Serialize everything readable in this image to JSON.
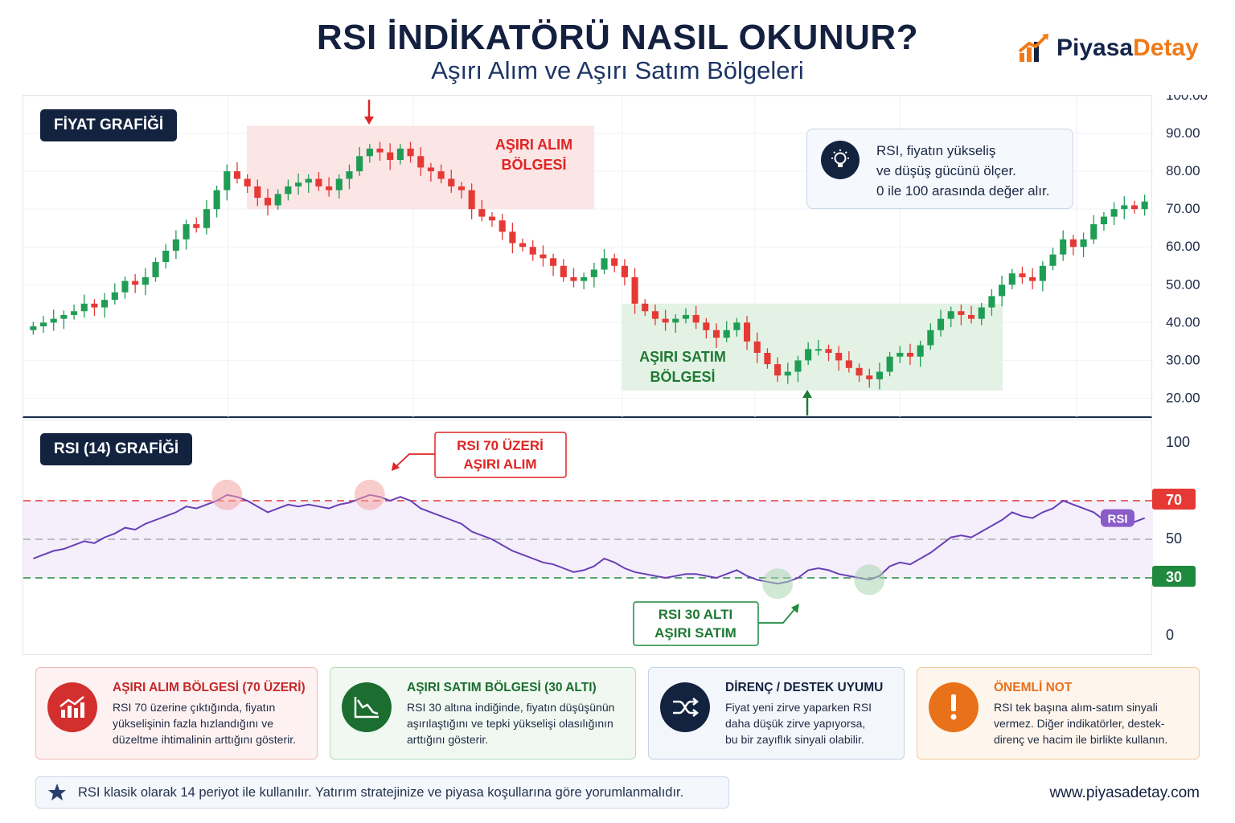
{
  "header": {
    "title": "RSI İNDİKATÖRÜ NASIL OKUNUR?",
    "subtitle": "Aşırı Alım ve Aşırı Satım Bölgeleri",
    "logo_part1": "Piyasa",
    "logo_part2": "Detay"
  },
  "price_panel": {
    "tag": "FİYAT GRAFİĞİ",
    "overbought_zone_label": [
      "AŞIRI ALIM",
      "BÖLGESİ"
    ],
    "oversold_zone_label": [
      "AŞIRI SATIM",
      "BÖLGESİ"
    ],
    "info_lines": [
      "RSI, fiyatın yükseliş",
      "ve düşüş gücünü ölçer.",
      "0 ile 100 arasında değer alır."
    ]
  },
  "rsi_panel": {
    "tag": "RSI (14) GRAFİĞİ",
    "overbought_callout": [
      "RSI 70 ÜZERİ",
      "AŞIRI ALIM"
    ],
    "oversold_callout": [
      "RSI 30 ALTI",
      "AŞIRI SATIM"
    ],
    "line_label": "RSI",
    "badge_70": "70",
    "badge_30": "30"
  },
  "chart_data": [
    {
      "type": "candlestick",
      "title": "FİYAT GRAFİĞİ",
      "ylim": [
        15,
        100
      ],
      "y_ticks": [
        "100.00",
        "90.00",
        "80.00",
        "70.00",
        "60.00",
        "50.00",
        "40.00",
        "30.00",
        "20.00"
      ],
      "y_tick_values": [
        100,
        90,
        80,
        70,
        60,
        50,
        40,
        30,
        20
      ],
      "close_series": [
        39,
        40,
        41,
        42,
        43,
        45,
        44,
        46,
        48,
        51,
        50,
        52,
        56,
        59,
        62,
        66,
        65,
        70,
        75,
        80,
        78,
        76,
        73,
        71,
        74,
        76,
        77,
        78,
        76,
        75,
        78,
        80,
        84,
        86,
        85,
        83,
        86,
        84,
        81,
        80,
        78,
        76,
        75,
        70,
        68,
        67,
        64,
        61,
        60,
        58,
        57,
        55,
        52,
        51,
        52,
        54,
        57,
        55,
        52,
        45,
        43,
        41,
        40,
        41,
        42,
        40,
        38,
        36,
        38,
        40,
        35,
        32,
        29,
        26,
        27,
        30,
        33,
        33,
        32,
        30,
        28,
        26,
        25,
        27,
        31,
        32,
        31,
        34,
        38,
        41,
        43,
        42,
        41,
        44,
        47,
        50,
        53,
        52,
        51,
        55,
        58,
        62,
        60,
        62,
        66,
        68,
        70,
        71,
        70,
        72
      ],
      "overbought_zone": {
        "label": "AŞIRI ALIM BÖLGESİ",
        "y_range": [
          70,
          92
        ]
      },
      "oversold_zone": {
        "label": "AŞIRI SATIM BÖLGESİ",
        "y_range": [
          22,
          45
        ]
      },
      "bull_color": "#1f9d55",
      "bear_color": "#e53935"
    },
    {
      "type": "line",
      "title": "RSI (14) GRAFİĞİ",
      "ylim": [
        0,
        100
      ],
      "y_ticks": [
        "100",
        "50",
        "0"
      ],
      "y_tick_values": [
        100,
        50,
        0
      ],
      "reference_lines": [
        {
          "value": 70,
          "color": "#e53935",
          "label": "70"
        },
        {
          "value": 50,
          "color": "#aaaaaa"
        },
        {
          "value": 30,
          "color": "#1f8a3e",
          "label": "30"
        }
      ],
      "series": [
        {
          "name": "RSI",
          "color": "#6a3fb5",
          "values": [
            40,
            42,
            44,
            45,
            47,
            49,
            48,
            51,
            53,
            56,
            55,
            58,
            60,
            62,
            64,
            67,
            66,
            68,
            70,
            73,
            72,
            70,
            67,
            64,
            66,
            68,
            67,
            68,
            67,
            66,
            68,
            69,
            71,
            73,
            72,
            70,
            72,
            70,
            66,
            64,
            62,
            60,
            58,
            54,
            52,
            50,
            47,
            44,
            42,
            40,
            38,
            37,
            35,
            33,
            34,
            36,
            40,
            38,
            35,
            33,
            32,
            31,
            30,
            31,
            32,
            32,
            31,
            30,
            32,
            34,
            31,
            29,
            28,
            27,
            28,
            30,
            34,
            35,
            34,
            32,
            31,
            30,
            29,
            31,
            36,
            38,
            37,
            40,
            43,
            47,
            51,
            52,
            51,
            54,
            57,
            60,
            64,
            62,
            61,
            64,
            66,
            70,
            68,
            66,
            64,
            60,
            58,
            57,
            59,
            61
          ]
        }
      ]
    }
  ],
  "cards": [
    {
      "title": "AŞIRI ALIM BÖLGESİ (70 ÜZERİ)",
      "text": [
        "RSI 70 üzerine çıktığında, fiyatın",
        "yükselişinin fazla hızlandığını ve",
        "düzeltme ihtimalinin arttığını gösterir."
      ],
      "color": "#d32f2f"
    },
    {
      "title": "AŞIRI SATIM BÖLGESİ (30 ALTI)",
      "text": [
        "RSI 30 altına indiğinde, fiyatın düşüşünün",
        "aşırılaştığını ve tepki yükselişi olasılığının",
        "arttığını gösterir."
      ],
      "color": "#1b6e2f"
    },
    {
      "title": "DİRENÇ / DESTEK UYUMU",
      "text": [
        "Fiyat yeni zirve yaparken RSI",
        "daha düşük zirve yapıyorsa,",
        "bu bir zayıflık sinyali olabilir."
      ],
      "color": "#13233f"
    },
    {
      "title": "ÖNEMLİ NOT",
      "text": [
        "RSI tek başına alım-satım sinyali",
        "vermez. Diğer indikatörler, destek-",
        "direnç ve hacim ile birlikte kullanın."
      ],
      "color": "#e8711a"
    }
  ],
  "footer": {
    "note": "RSI klasik olarak 14 periyot ile kullanılır. Yatırım stratejinize ve piyasa koşullarına göre yorumlanmalıdır.",
    "url": "www.piyasadetay.com"
  }
}
